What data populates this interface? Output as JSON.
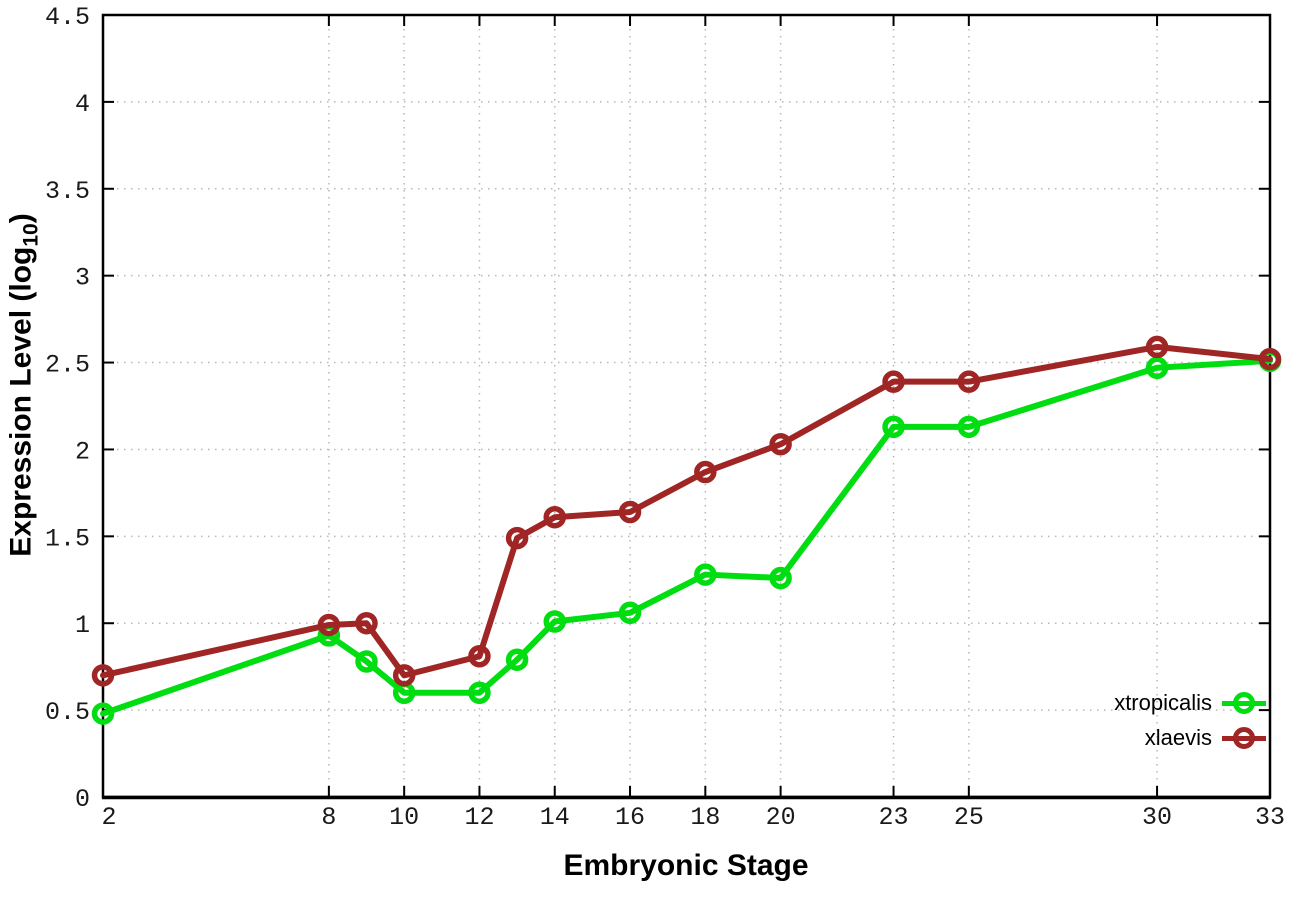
{
  "chart_data": {
    "type": "line",
    "x": [
      2,
      8,
      9,
      10,
      12,
      13,
      14,
      16,
      18,
      20,
      23,
      25,
      30,
      33
    ],
    "series": [
      {
        "name": "xtropicalis",
        "color": "#00dd11",
        "values": [
          0.48,
          0.93,
          0.78,
          0.6,
          0.6,
          0.79,
          1.01,
          1.06,
          1.28,
          1.26,
          2.13,
          2.13,
          2.47,
          2.51
        ]
      },
      {
        "name": "xlaevis",
        "color": "#a02626",
        "values": [
          0.7,
          0.99,
          1.0,
          0.7,
          0.81,
          1.49,
          1.61,
          1.64,
          1.87,
          2.03,
          2.39,
          2.39,
          2.59,
          2.52
        ]
      }
    ],
    "title": "",
    "xlabel": "Embryonic Stage",
    "ylabel": "Expression Level (log10)",
    "ylabel_prefix": "Expression Level (log",
    "ylabel_sub": "10",
    "ylabel_suffix": ")",
    "xlim": [
      2,
      33
    ],
    "ylim": [
      0,
      4.5
    ],
    "xticks": [
      2,
      8,
      10,
      12,
      14,
      16,
      18,
      20,
      23,
      25,
      30,
      33
    ],
    "yticks": [
      0,
      0.5,
      1,
      1.5,
      2,
      2.5,
      3,
      3.5,
      4,
      4.5
    ],
    "grid": true,
    "grid_color": "#b8b8b8",
    "axis_color": "#000000",
    "marker": "open-circle",
    "legend_position": "inside-bottom-right",
    "legend_entries": [
      "xtropicalis",
      "xlaevis"
    ]
  }
}
